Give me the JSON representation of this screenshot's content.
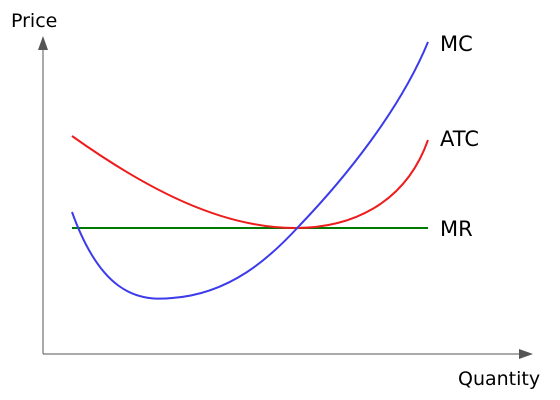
{
  "diagram": {
    "axes": {
      "y_label": "Price",
      "x_label": "Quantity"
    },
    "curves": [
      {
        "key": "mc",
        "label": "MC",
        "color": "#3b3bec"
      },
      {
        "key": "atc",
        "label": "ATC",
        "color": "#ee1c1c"
      },
      {
        "key": "mr",
        "label": "MR",
        "color": "#007a00"
      }
    ],
    "axis_color": "#555555"
  }
}
